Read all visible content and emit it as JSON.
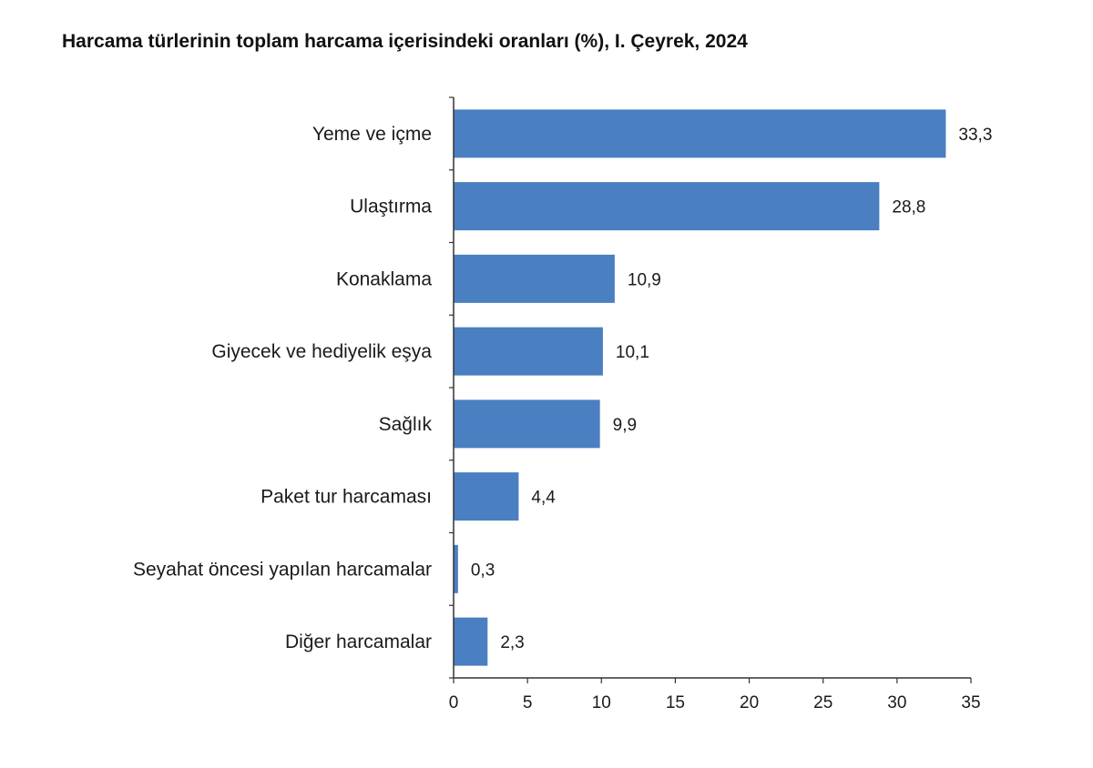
{
  "chart_data": {
    "type": "bar",
    "orientation": "horizontal",
    "title": "Harcama türlerinin toplam harcama içerisindeki oranları (%), I. Çeyrek, 2024",
    "categories": [
      "Yeme ve içme",
      "Ulaştırma",
      "Konaklama",
      "Giyecek ve hediyelik eşya",
      "Sağlık",
      "Paket tur harcaması",
      "Seyahat öncesi yapılan harcamalar",
      "Diğer harcamalar"
    ],
    "values": [
      33.3,
      28.8,
      10.9,
      10.1,
      9.9,
      4.4,
      0.3,
      2.3
    ],
    "value_labels": [
      "33,3",
      "28,8",
      "10,9",
      "10,1",
      "9,9",
      "4,4",
      "0,3",
      "2,3"
    ],
    "xlim": [
      0,
      35
    ],
    "xticks": [
      0,
      5,
      10,
      15,
      20,
      25,
      30,
      35
    ],
    "xtick_labels": [
      "0",
      "5",
      "10",
      "15",
      "20",
      "25",
      "30",
      "35"
    ],
    "bar_color": "#4a7fc1",
    "grid": false,
    "legend": "none"
  }
}
